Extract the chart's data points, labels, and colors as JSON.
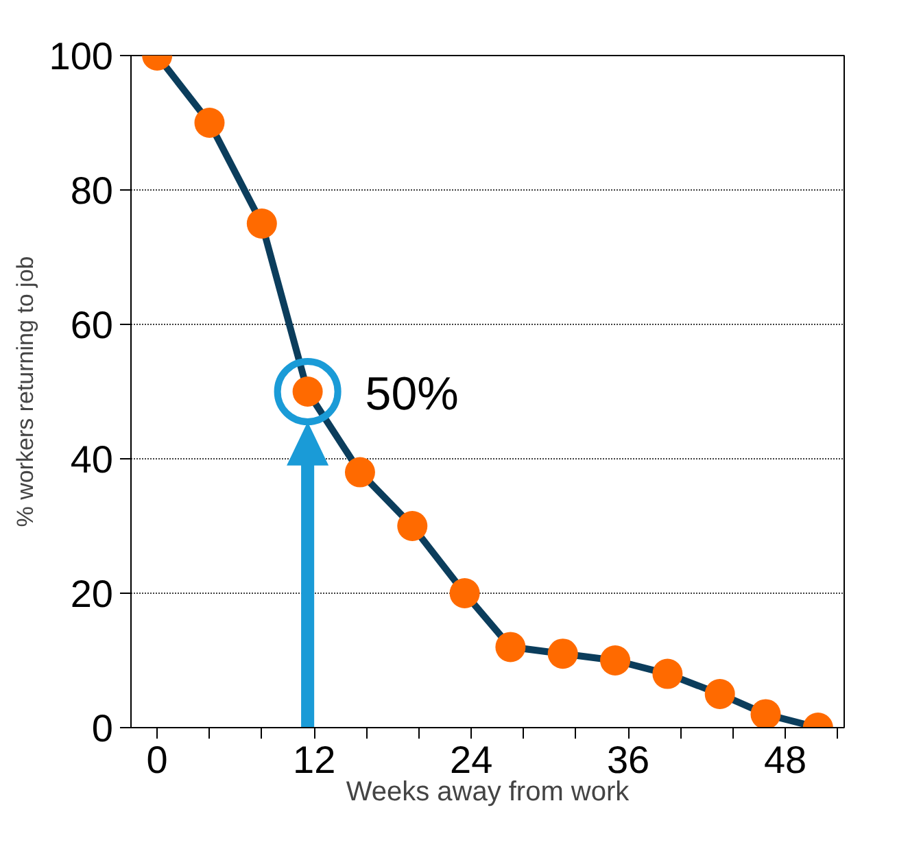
{
  "chart_data": {
    "type": "line",
    "xlabel": "Weeks away from work",
    "ylabel": "% workers returning to job",
    "x": [
      0,
      4,
      8,
      11.5,
      15.5,
      19.5,
      23.5,
      27,
      31,
      35,
      39,
      43,
      46.5,
      50.5
    ],
    "series": [
      {
        "color": "#0b3d5c",
        "colors": [
          "#ff6a00",
          "#ff6a00",
          "#ff6a00",
          "#ff6a00",
          "#ff6a00",
          "#ff6a00",
          "#ff6a00",
          "#ff6a00",
          "#ff6a00",
          "#ff6a00",
          "#ff6a00",
          "#ff6a00",
          "#ff6a00",
          "#ff6a00"
        ],
        "values": [
          100,
          90,
          75,
          50,
          38,
          30,
          20,
          12,
          11,
          10,
          8,
          5,
          2,
          0
        ]
      }
    ],
    "marker": "circle",
    "line_style": "solid",
    "grid": "y",
    "xlim": [
      -2,
      52.5
    ],
    "ylim": [
      0,
      100
    ],
    "xticks": [
      0,
      {
        "value": 4,
        "label": null
      },
      {
        "value": 8,
        "label": null
      },
      12,
      {
        "value": 16,
        "label": null
      },
      {
        "value": 20,
        "label": null
      },
      24,
      {
        "value": 28,
        "label": null
      },
      {
        "value": 32,
        "label": null
      },
      36,
      {
        "value": 40,
        "label": null
      },
      {
        "value": 44,
        "label": null
      },
      48,
      {
        "value": 52,
        "label": null
      }
    ],
    "yticks": [
      0,
      20,
      40,
      60,
      80,
      100
    ],
    "annotations": [
      {
        "text": "50%",
        "x": 11.5,
        "y": 50
      }
    ]
  }
}
